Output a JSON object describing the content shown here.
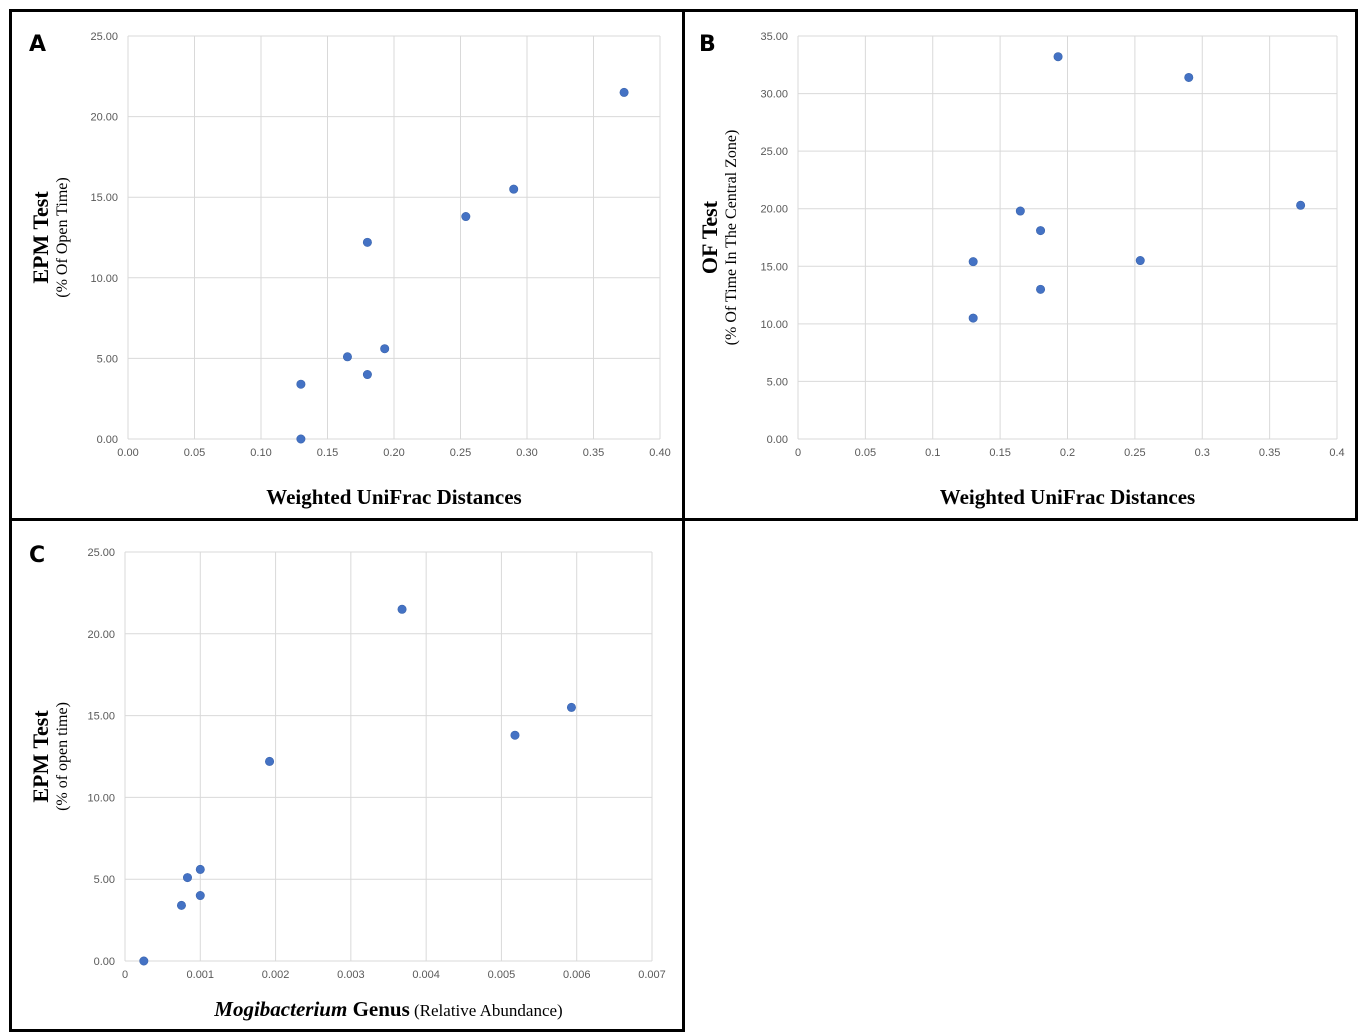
{
  "chart_data": [
    {
      "id": "A",
      "type": "scatter",
      "panel_label": "A",
      "xlabel": "Weighted UniFrac Distances",
      "ylabel_main": "EPM Test",
      "ylabel_sub": "(% Of Open Time)",
      "xlim": [
        0,
        0.4
      ],
      "ylim": [
        0,
        25
      ],
      "x_ticks": [
        "0.00",
        "0.05",
        "0.10",
        "0.15",
        "0.20",
        "0.25",
        "0.30",
        "0.35",
        "0.40"
      ],
      "y_ticks": [
        "0.00",
        "5.00",
        "10.00",
        "15.00",
        "20.00",
        "25.00"
      ],
      "grid": true,
      "marker_color": "#4472C4",
      "points": [
        {
          "x": 0.13,
          "y": 0.0
        },
        {
          "x": 0.13,
          "y": 3.4
        },
        {
          "x": 0.165,
          "y": 5.1
        },
        {
          "x": 0.18,
          "y": 4.0
        },
        {
          "x": 0.18,
          "y": 12.2
        },
        {
          "x": 0.193,
          "y": 5.6
        },
        {
          "x": 0.254,
          "y": 13.8
        },
        {
          "x": 0.29,
          "y": 15.5
        },
        {
          "x": 0.373,
          "y": 21.5
        }
      ]
    },
    {
      "id": "B",
      "type": "scatter",
      "panel_label": "B",
      "xlabel": "Weighted UniFrac Distances",
      "ylabel_main": "OF Test",
      "ylabel_sub": "(% Of Time In The Central Zone)",
      "xlim": [
        0,
        0.4
      ],
      "ylim": [
        0,
        35
      ],
      "x_ticks": [
        "0",
        "0.05",
        "0.1",
        "0.15",
        "0.2",
        "0.25",
        "0.3",
        "0.35",
        "0.4"
      ],
      "y_ticks": [
        "0.00",
        "5.00",
        "10.00",
        "15.00",
        "20.00",
        "25.00",
        "30.00",
        "35.00"
      ],
      "grid": true,
      "marker_color": "#4472C4",
      "points": [
        {
          "x": 0.13,
          "y": 10.5
        },
        {
          "x": 0.13,
          "y": 15.4
        },
        {
          "x": 0.165,
          "y": 19.8
        },
        {
          "x": 0.18,
          "y": 13.0
        },
        {
          "x": 0.18,
          "y": 18.1
        },
        {
          "x": 0.193,
          "y": 33.2
        },
        {
          "x": 0.254,
          "y": 15.5
        },
        {
          "x": 0.29,
          "y": 31.4
        },
        {
          "x": 0.373,
          "y": 20.3
        }
      ]
    },
    {
      "id": "C",
      "type": "scatter",
      "panel_label": "C",
      "xlabel_italic": "Mogibacterium",
      "xlabel_bold": "Genus",
      "xlabel_sub": "(Relative Abundance)",
      "ylabel_main": "EPM Test",
      "ylabel_sub": "(% of open time)",
      "xlim": [
        0,
        0.007
      ],
      "ylim": [
        0,
        25
      ],
      "x_ticks": [
        "0",
        "0.001",
        "0.002",
        "0.003",
        "0.004",
        "0.005",
        "0.006",
        "0.007"
      ],
      "y_ticks": [
        "0.00",
        "5.00",
        "10.00",
        "15.00",
        "20.00",
        "25.00"
      ],
      "grid": true,
      "marker_color": "#4472C4",
      "points": [
        {
          "x": 0.00025,
          "y": 0.0
        },
        {
          "x": 0.00075,
          "y": 3.4
        },
        {
          "x": 0.00083,
          "y": 5.1
        },
        {
          "x": 0.001,
          "y": 4.0
        },
        {
          "x": 0.001,
          "y": 5.6
        },
        {
          "x": 0.00192,
          "y": 12.2
        },
        {
          "x": 0.00368,
          "y": 21.5
        },
        {
          "x": 0.00518,
          "y": 13.8
        },
        {
          "x": 0.00593,
          "y": 15.5
        }
      ]
    }
  ]
}
